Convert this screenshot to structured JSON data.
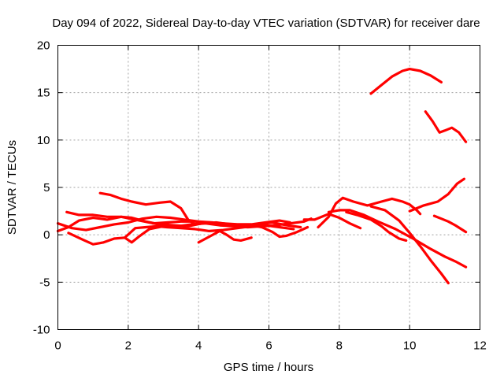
{
  "chart_data": {
    "type": "line",
    "title": "Day 094 of 2022, Sidereal Day-to-day VTEC variation (SDTVAR) for receiver dare",
    "xlabel": "GPS time / hours",
    "ylabel": "SDTVAR / TECUs",
    "xlim": [
      0,
      12
    ],
    "ylim": [
      -10,
      20
    ],
    "xticks": [
      0,
      2,
      4,
      6,
      8,
      10,
      12
    ],
    "yticks": [
      -10,
      -5,
      0,
      5,
      10,
      15,
      20
    ],
    "grid": true,
    "color": "#ff0000",
    "series": [
      {
        "name": "s1",
        "x": [
          8.9,
          9.2,
          9.5,
          9.8,
          10.0,
          10.3,
          10.6,
          10.9
        ],
        "y": [
          14.9,
          15.8,
          16.7,
          17.3,
          17.5,
          17.3,
          16.8,
          16.1
        ]
      },
      {
        "name": "s2",
        "x": [
          10.45,
          10.65,
          10.85,
          11.0,
          11.2,
          11.4,
          11.6
        ],
        "y": [
          13.0,
          12.0,
          10.8,
          11.0,
          11.3,
          10.8,
          9.8
        ]
      },
      {
        "name": "s3",
        "x": [
          10.0,
          10.4,
          10.8,
          11.1,
          11.35,
          11.55
        ],
        "y": [
          2.5,
          3.1,
          3.5,
          4.3,
          5.4,
          5.9
        ]
      },
      {
        "name": "s4",
        "x": [
          10.7,
          10.9,
          11.1,
          11.3,
          11.6
        ],
        "y": [
          2.0,
          1.7,
          1.4,
          1.0,
          0.3
        ]
      },
      {
        "name": "s5",
        "x": [
          7.7,
          8.0,
          8.3,
          8.7,
          9.1,
          9.6,
          10.1,
          10.6,
          11.0,
          11.3,
          11.6
        ],
        "y": [
          2.4,
          2.6,
          2.6,
          2.1,
          1.4,
          0.6,
          -0.4,
          -1.5,
          -2.3,
          -2.8,
          -3.4
        ]
      },
      {
        "name": "s6",
        "x": [
          8.9,
          9.3,
          9.7,
          10.0,
          10.3,
          10.6,
          10.9,
          11.1
        ],
        "y": [
          3.0,
          2.6,
          1.5,
          0.2,
          -1.2,
          -2.7,
          -4.1,
          -5.1
        ]
      },
      {
        "name": "s7",
        "x": [
          7.4,
          7.7,
          7.9,
          8.1,
          8.4,
          8.8,
          9.2,
          9.5,
          9.8,
          10.0,
          10.2,
          10.3
        ],
        "y": [
          0.8,
          1.9,
          3.3,
          3.9,
          3.5,
          3.1,
          3.5,
          3.8,
          3.5,
          3.2,
          2.6,
          2.2
        ]
      },
      {
        "name": "s8",
        "x": [
          7.0,
          7.3,
          7.7,
          8.0,
          8.3,
          8.6
        ],
        "y": [
          1.6,
          1.6,
          2.2,
          1.8,
          1.2,
          0.7
        ]
      },
      {
        "name": "s9",
        "x": [
          8.2,
          8.5,
          8.9,
          9.2,
          9.4,
          9.7,
          9.9
        ],
        "y": [
          2.4,
          2.1,
          1.6,
          0.9,
          0.3,
          -0.4,
          -0.6
        ]
      },
      {
        "name": "s10",
        "x": [
          1.2,
          1.5,
          1.8,
          2.1,
          2.5,
          2.9,
          3.2,
          3.5,
          3.7,
          3.9
        ],
        "y": [
          4.4,
          4.2,
          3.8,
          3.5,
          3.2,
          3.4,
          3.5,
          2.8,
          1.6,
          1.1
        ]
      },
      {
        "name": "s11",
        "x": [
          0.25,
          0.6,
          1.0,
          1.4,
          1.8,
          2.2,
          2.6,
          3.0,
          3.4,
          3.8,
          4.2,
          4.6,
          5.0,
          5.4,
          5.8,
          6.2,
          6.6,
          7.0,
          7.2
        ],
        "y": [
          2.4,
          2.1,
          2.1,
          1.9,
          1.9,
          1.6,
          1.3,
          1.0,
          0.9,
          1.1,
          1.2,
          1.0,
          0.9,
          0.8,
          0.9,
          1.0,
          1.2,
          1.4,
          1.7
        ]
      },
      {
        "name": "s12",
        "x": [
          0.0,
          0.4,
          0.8,
          1.2,
          1.6,
          2.0,
          2.4,
          2.8,
          3.2,
          3.6,
          4.0,
          4.4
        ],
        "y": [
          1.2,
          0.7,
          0.5,
          0.8,
          1.1,
          1.3,
          1.7,
          1.9,
          1.8,
          1.6,
          1.4,
          1.3
        ]
      },
      {
        "name": "s13",
        "x": [
          0.0,
          0.3,
          0.6,
          1.0,
          1.4,
          1.8,
          2.1,
          2.5,
          2.9,
          3.3,
          3.7,
          4.1,
          4.5,
          4.9,
          5.3,
          5.7,
          6.1,
          6.5,
          6.9
        ],
        "y": [
          0.4,
          0.8,
          1.5,
          1.8,
          1.6,
          1.9,
          1.8,
          1.4,
          1.1,
          1.0,
          0.9,
          1.2,
          1.3,
          1.1,
          0.9,
          1.1,
          1.3,
          1.0,
          0.8
        ]
      },
      {
        "name": "s14",
        "x": [
          0.3,
          0.7,
          1.0,
          1.3,
          1.6,
          1.9,
          2.1,
          2.3,
          2.6,
          3.0
        ],
        "y": [
          0.2,
          -0.5,
          -1.0,
          -0.8,
          -0.4,
          -0.3,
          -0.8,
          -0.2,
          0.6,
          0.9
        ]
      },
      {
        "name": "s15",
        "x": [
          1.9,
          2.2,
          2.5,
          2.8,
          3.1,
          3.5,
          3.9,
          4.3,
          4.7,
          5.1,
          5.5,
          5.9,
          6.3,
          6.7
        ],
        "y": [
          -0.3,
          0.7,
          0.8,
          0.9,
          0.8,
          0.7,
          0.6,
          0.4,
          0.5,
          0.7,
          0.9,
          1.0,
          0.8,
          0.6
        ]
      },
      {
        "name": "s16",
        "x": [
          4.0,
          4.3,
          4.6,
          4.8,
          5.0,
          5.2,
          5.5
        ],
        "y": [
          -0.8,
          -0.2,
          0.4,
          0.0,
          -0.5,
          -0.6,
          -0.3
        ]
      },
      {
        "name": "s17",
        "x": [
          5.5,
          5.8,
          6.1,
          6.3,
          6.5,
          6.8,
          7.1
        ],
        "y": [
          1.0,
          0.8,
          0.3,
          -0.2,
          -0.1,
          0.3,
          0.8
        ]
      },
      {
        "name": "s18",
        "x": [
          2.7,
          3.1,
          3.5,
          3.9,
          4.3,
          4.7,
          5.1,
          5.5,
          5.9,
          6.3,
          6.6
        ],
        "y": [
          1.2,
          1.3,
          1.4,
          1.4,
          1.3,
          1.2,
          1.1,
          1.1,
          1.3,
          1.5,
          1.3
        ]
      }
    ]
  }
}
